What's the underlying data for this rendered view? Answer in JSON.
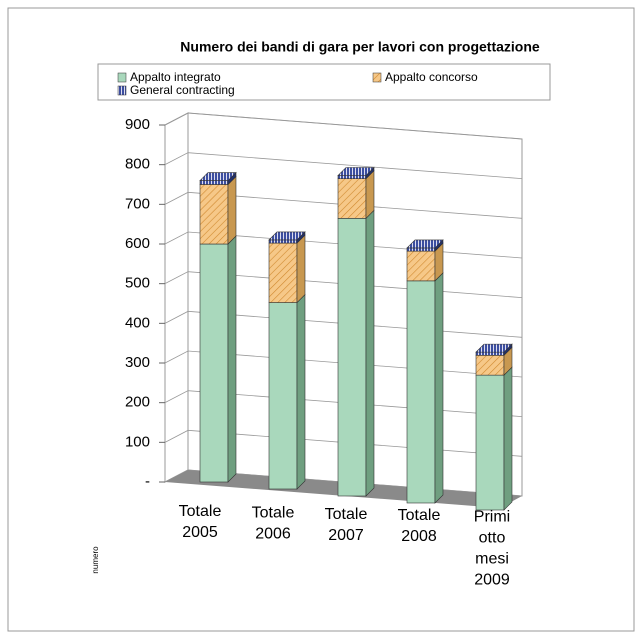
{
  "chart_data": {
    "type": "bar3d_stacked",
    "title": "Numero dei bandi di gara per lavori con progettazione",
    "categories": [
      "Totale 2005",
      "Totale 2006",
      "Totale 2007",
      "Totale 2008",
      "Primi otto mesi 2009"
    ],
    "series": [
      {
        "name": "Appalto integrato",
        "color": "#a9d8bc",
        "values": [
          600,
          470,
          700,
          560,
          340
        ]
      },
      {
        "name": "Appalto concorso",
        "color": "#f6c888",
        "values": [
          150,
          150,
          100,
          75,
          50
        ]
      },
      {
        "name": "General contracting",
        "color": "#3c4ea0",
        "values": [
          10,
          8,
          8,
          8,
          8
        ]
      }
    ],
    "ylim": [
      0,
      900
    ],
    "yticks": [
      {
        "value": 0,
        "label": "-"
      },
      100,
      200,
      300,
      400,
      500,
      600,
      700,
      800,
      900
    ],
    "y_axis_label": "numero",
    "grid": true,
    "legend": "top"
  }
}
